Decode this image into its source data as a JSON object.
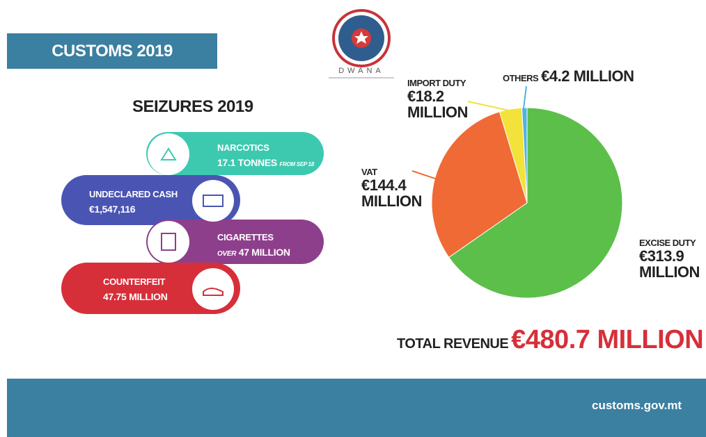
{
  "header": {
    "title": "CUSTOMS 2019",
    "logo_text": "DWANA"
  },
  "seizures": {
    "title": "SEIZURES 2019",
    "items": [
      {
        "label": "NARCOTICS",
        "value": "17.1 TONNES",
        "note": "FROM SEP 18"
      },
      {
        "label": "UNDECLARED CASH",
        "value": "€1,547,116"
      },
      {
        "label": "CIGARETTES",
        "prefix": "OVER",
        "value": "47 MILLION"
      },
      {
        "label": "COUNTERFEIT",
        "value": "47.75 MILLION"
      }
    ]
  },
  "chart_data": {
    "type": "pie",
    "categories": [
      "EXCISE DUTY",
      "VAT",
      "IMPORT DUTY",
      "OTHERS"
    ],
    "values": [
      313.9,
      144.4,
      18.2,
      4.2
    ],
    "value_labels": [
      "€313.9 MILLION",
      "€144.4 MILLION",
      "€18.2 MILLION",
      "€4.2 MILLION"
    ],
    "colors": [
      "#5cbf4a",
      "#f06a35",
      "#f2e23a",
      "#4fb4e0"
    ],
    "total": {
      "label": "TOTAL REVENUE",
      "value": "€480.7 MILLION"
    }
  },
  "footer": {
    "url": "customs.gov.mt"
  }
}
